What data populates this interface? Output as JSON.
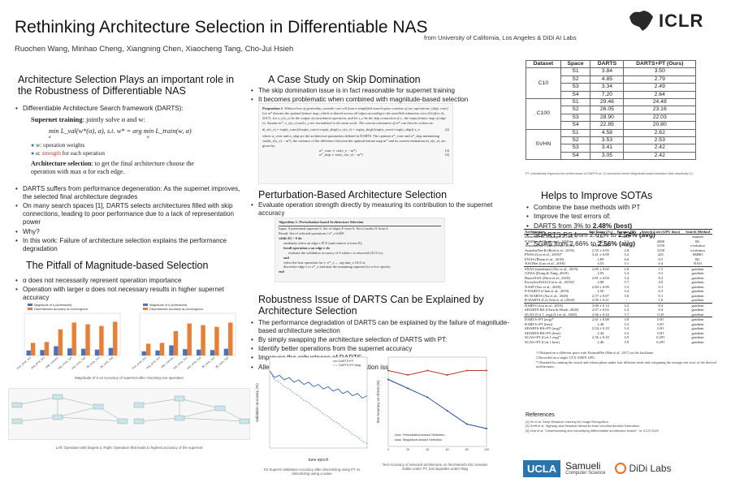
{
  "header": {
    "title": "Rethinking Architecture Selection in Differentiable NAS",
    "authors": "Ruochen Wang, Minhao Cheng, Xiangning Chen, Xiaocheng Tang, Cho-Jui Hsieh",
    "affiliation": "from University of California, Los Angeles & DiDi AI Labs",
    "logo_text": "ICLR"
  },
  "sec1": {
    "title": "Architecture Selection Plays an important role in the Robustness of Differentiable NAS",
    "b1": "Differentiable Architecture Search framework (DARTS):",
    "supernet_label": "Supernet training",
    "supernet_text": ": jointly solve α and w:",
    "eq": "min L_val(w*(α), α),   s.t.   w* = arg min L_train(w, α)",
    "eq_sub1": "α",
    "eq_sub2": "w",
    "w_label": "w: operation weights",
    "a_label": "α: ",
    "a_strength": "strength",
    "a_rest": " for each operation",
    "arch_label": "Architecture selection",
    "arch_text": ": to get the final architecture choose the operation with max α for each edge.",
    "b2": "DARTS suffers from performance degeneration: As the supernet improves, the selected final architecture degrades",
    "b3": "On many search spaces [1], DARTS selects architectures filled with skip connections, leading to poor performance due to a lack of representation power",
    "b4": "Why?",
    "b5": "In this work: Failure of architecture selection explains the performance degradation"
  },
  "sec2": {
    "title": "The Pitfall of Magnitude-based Selection",
    "b1": "α does not necessarily represent operation importance",
    "b2": "Operation with larger α does not necessary results in higher supernet accuracy",
    "chart_caption": "Magnitude of α vs Accuracy of supernet after choosing one operation",
    "legend1": "Magnitude of α (softmaxed)",
    "legend2": "Discretization accuracy at convergence",
    "bottom_caption": "Left: Operation with largest α, Right: Operation that leads to highest accuracy of the supernet"
  },
  "chart_data": [
    {
      "type": "bar",
      "title": "",
      "categories": [
        "max_pool_3x3",
        "avg_pool_3x3",
        "skip_connect",
        "sep_conv_3x3",
        "sep_conv_5x5",
        "dil_conv_3x3",
        "dil_conv_5x5"
      ],
      "series": [
        {
          "name": "Magnitude of α (softmaxed)",
          "values": [
            0.12,
            0.13,
            0.22,
            0.17,
            0.16,
            0.14,
            0.18
          ]
        },
        {
          "name": "Discretization accuracy at convergence",
          "values": [
            0.3,
            0.32,
            0.62,
            0.78,
            0.74,
            0.7,
            0.8
          ]
        }
      ],
      "ylim": [
        0,
        1
      ]
    },
    {
      "type": "bar",
      "title": "",
      "categories": [
        "max_pool_3x3",
        "avg_pool_3x3",
        "skip_connect",
        "sep_conv_3x3",
        "sep_conv_5x5",
        "dil_conv_3x3",
        "dil_conv_5x5"
      ],
      "series": [
        {
          "name": "Magnitude of α (softmaxed)",
          "values": [
            0.1,
            0.12,
            0.24,
            0.15,
            0.14,
            0.13,
            0.16
          ]
        },
        {
          "name": "Discretization accuracy at convergence",
          "values": [
            0.28,
            0.3,
            0.58,
            0.76,
            0.72,
            0.68,
            0.78
          ]
        }
      ],
      "ylim": [
        0,
        1
      ]
    },
    {
      "type": "line",
      "title": "",
      "xlabel": "tune epoch",
      "ylabel": "validation accuracy (%)",
      "x": [
        0,
        1,
        2,
        3,
        4,
        5,
        6,
        7,
        8,
        9,
        10,
        11,
        12,
        13,
        14,
        15,
        16,
        17,
        18,
        19,
        20
      ],
      "series": [
        {
          "name": "DARTS+PT",
          "values": [
            84,
            81,
            82,
            80,
            81,
            79,
            80,
            78,
            79,
            77,
            78,
            76,
            77,
            75,
            76,
            74,
            75,
            73,
            74,
            72,
            73
          ]
        },
        {
          "name": "DARTS+PT-Mag",
          "values": [
            84,
            80,
            79,
            77,
            76,
            74,
            73,
            71,
            70,
            68,
            67,
            65,
            64,
            62,
            61,
            59,
            58,
            56,
            55,
            53,
            52
          ]
        }
      ],
      "ylim": [
        50,
        90
      ]
    },
    {
      "type": "line",
      "title": "",
      "xlabel": "",
      "ylabel": "Test Accuracy on cifar10 (%)",
      "x": [
        0,
        20,
        40,
        60,
        80,
        100
      ],
      "series": [
        {
          "name": "Perturbation-based Selection",
          "values": [
            97.2,
            97.1,
            97.2,
            97.1,
            97.2,
            97.2
          ]
        },
        {
          "name": "Magnitude-based Selection",
          "values": [
            97.0,
            96.8,
            96.6,
            96.3,
            96.0,
            95.9
          ]
        }
      ],
      "ylim": [
        95.5,
        97.5
      ]
    }
  ],
  "sec3": {
    "title": "A Case Study on Skip Domination",
    "b1": "The skip domination issue is in fact reasonable for supernet training",
    "b2": "It becomes problematic when combined with magnitude-based selection",
    "prop_title": "Proposition 1.",
    "prop_text": "Without loss of generality, consider one cell from a simplified search space consists of two operations: (skip, conv). Let m* denotes the optimal feature map, which is shared across all edges according to the unrolled estimation view (Greff et al., 2017). Let o_e(x_e) be the output of convolution operation, and let x_e be the skip connection (i.e., the input feature map of edge e). Assume m*, o_e(x_e) and x_e are normalized to the same scale. The current estimation of m* can then be written as:",
    "prop_eq": "m̄_e(x_e) = exp(α_conv)/(exp(α_conv)+exp(α_skip)) o_e(x_e) + exp(α_skip)/(exp(α_conv)+exp(α_skip)) x_e",
    "prop_eq_no": "(2)",
    "prop_after": "where α_conv and α_skip are the architecture parameters defined in DARTS. The optimal α*_conv and α*_skip minimizing var(m̄_e(x_e) − m*), the variance of the difference between the optimal feature map m* and its current estimation m̄_e(x_e), are given by:",
    "prop_eq3": "α*_conv ∝ var(x_e − m*)",
    "prop_eq3_no": "(3)",
    "prop_eq4": "α*_skip ∝ var(o_e(x_e) − m*)",
    "prop_eq4_no": "(4)"
  },
  "sec4": {
    "title": "Perturbation-Based Architecture Selection",
    "b1": "Evaluate operation strength directly by measuring its contribution to the supernet accuracy",
    "algo_title": "Algorithm 1: Perturbation-based Architecture Selection",
    "algo_lines": [
      "Input: A pretrained supernet S, Set of edges E from S, Set of nodes N from S",
      "Result: Set of selected operations {o*_e}e∈E",
      "while |E| > 0 do",
      "randomly select an edge e ∈ E (and remove it from E);",
      "forall operation o on edge e do",
      "evaluate the validation accuracy of S when o is removed (ACC\\o);",
      "end",
      "select the best operation for e: o*_e ← arg min_o ACC\\o;",
      "discretize edge e to o*_e and tune the remaining supernet for a few epochs;",
      "end"
    ]
  },
  "sec5": {
    "title": "Robustness Issue of DARTS Can be Explained by Architecture Selection",
    "b1": "The performance degradation of DARTS can be explained by the failure of magnitude-based architecture selection",
    "b2": "By simply swapping the architecture selection of DARTS with PT:",
    "b3": "Identify better operations from the supernet accuracy",
    "b4": "Improves the robustness of DARTS",
    "b5": "Alleviates the skip connection domination issue of DARTS",
    "cap1": "S2 Supernt Validation Accuracy after discretizing using PT vs discretizing using α value",
    "cap2": "Test Accuracy of selected architecture on NAS-Bench-201 remains stable under PT, but degrades under Mag"
  },
  "table1": {
    "headers": [
      "Dataset",
      "Space",
      "DARTS",
      "DARTS+PT (Ours)"
    ],
    "groups": [
      {
        "dataset": "C10",
        "rows": [
          [
            "S1",
            "3.84",
            "3.50"
          ],
          [
            "S2",
            "4.85",
            "2.79"
          ],
          [
            "S3",
            "3.34",
            "2.49"
          ],
          [
            "S4",
            "7.20",
            "2.64"
          ]
        ]
      },
      {
        "dataset": "C100",
        "rows": [
          [
            "S1",
            "29.46",
            "24.48"
          ],
          [
            "S2",
            "26.05",
            "23.16"
          ],
          [
            "S3",
            "28.90",
            "22.03"
          ],
          [
            "S4",
            "22.85",
            "20.80"
          ]
        ]
      },
      {
        "dataset": "SVHN",
        "rows": [
          [
            "S1",
            "4.58",
            "2.62"
          ],
          [
            "S2",
            "3.53",
            "2.53"
          ],
          [
            "S3",
            "3.41",
            "2.42"
          ],
          [
            "S4",
            "3.05",
            "2.42"
          ]
        ]
      }
    ],
    "caption": "PT consistently improves the performance of DARTS on 12 scenarios where Magnitude-based selection fails drastically [1]"
  },
  "sec6": {
    "title": "Helps to Improve SOTAs",
    "b1": "Combine the base methods with PT",
    "b2": "Improve the test errors of:",
    "b3_a": "DARTS from 3% to ",
    "b3_b": "2.48% (best)",
    "b4_a": "SDARTS-RS from 2.67% to ",
    "b4_b": "2.54% (avg)",
    "b5_a": "SGAS from 2.66% to ",
    "b5_b": "2.56% (avg)"
  },
  "table2": {
    "headers": [
      "Architecture",
      "Test Error (%)",
      "Params (M)",
      "Search Cost (GPU days)",
      "Search Method"
    ],
    "rows": [
      [
        "DenseNet-BC (Huang et al., 2017)",
        "3.46",
        "25.6",
        "-",
        "manual"
      ],
      [
        "NASNet-A (Zoph et al., 2018)",
        "2.65",
        "3.3",
        "2000",
        "RL"
      ],
      [
        "AmoebaNet-A (Real et al., 2019)",
        "3.34 ± 0.06",
        "3.2",
        "3150",
        "evolution"
      ],
      [
        "AmoebaNet-B (Real et al., 2019)",
        "2.55 ± 0.05",
        "2.8",
        "3150",
        "evolution"
      ],
      [
        "PNAS (Liu et al., 2018)*",
        "3.41 ± 0.09",
        "3.2",
        "225",
        "SMBO"
      ],
      [
        "ENAS (Pham et al., 2018)",
        "2.89",
        "4.6",
        "0.5",
        "RL"
      ],
      [
        "NAONet (Luo et al., 2018)",
        "3.53",
        "3.1",
        "0.4",
        "NAO"
      ],
      [
        "SNAS (moderate) (Xie et al., 2019)",
        "2.85 ± 0.02",
        "2.8",
        "1.5",
        "gradient"
      ],
      [
        "GDAS (Dong & Yang, 2019)",
        "2.93",
        "3.4",
        "0.3",
        "gradient"
      ],
      [
        "BayesNAS (Zhou et al., 2019)",
        "2.81 ± 0.04",
        "3.4",
        "0.2",
        "gradient"
      ],
      [
        "ProxylessNAS (Cai et al., 2019)†",
        "2.08",
        "5.7",
        "4.0",
        "gradient"
      ],
      [
        "NASP (Yao et al., 2020)",
        "2.83 ± 0.09",
        "3.3",
        "0.1",
        "gradient"
      ],
      [
        "P-DARTS (Chen et al., 2019)",
        "2.50",
        "3.4",
        "0.3",
        "gradient"
      ],
      [
        "PC-DARTS (Xu et al., 2020)",
        "2.57 ± 0.07",
        "3.6",
        "0.1",
        "gradient"
      ],
      [
        "R-DARTS (L2) Zela et al. (2020)",
        "2.95 ± 0.21",
        "-",
        "1.6",
        "gradient"
      ],
      [
        "DARTS (Liu et al., 2019)",
        "3.00 ± 0.14",
        "3.3",
        "0.4",
        "gradient"
      ],
      [
        "SDARTS-RS (Chen & Hsieh, 2020)",
        "2.67 ± 0.03",
        "3.4",
        "0.4",
        "gradient"
      ],
      [
        "SGAS (Cri 1. avg) (Li et al., 2020)",
        "2.66 ± 0.24",
        "3.7",
        "0.25",
        "gradient"
      ],
      [
        "DARTS+PT (avg)*",
        "2.61 ± 0.08",
        "3.0",
        "0.8†",
        "gradient"
      ],
      [
        "DARTS+PT (best)",
        "2.48",
        "3.3",
        "0.8†",
        "gradient"
      ],
      [
        "SDARTS-RS+PT (avg)*",
        "2.54 ± 0.10",
        "3.3",
        "0.8†",
        "gradient"
      ],
      [
        "SDARTS-RS+PT (best)",
        "2.44",
        "3.2",
        "0.8†",
        "gradient"
      ],
      [
        "SGAS+PT (Crit.1 avg)*",
        "2.56 ± 0.10",
        "3.9",
        "0.29†",
        "gradient"
      ],
      [
        "SGAS+PT (Crit.1 best)",
        "2.46",
        "3.9",
        "0.29†",
        "gradient"
      ]
    ],
    "fn1": "† Obtained on a different space with PyramidNet (Han et al., 2017) as the backbone.",
    "fn2": "‡ Recorded on a single GTX 1080Ti GPU.",
    "fn3": "* Obtained by running the search and retrain phase under four different seeds and computing the average test error of the derived architectures."
  },
  "refs": {
    "title": "References",
    "r1": "[1] He et al. Deep Residual Learning for Image Recognition",
    "r2": "[2] Greff et al. Highway and Residual Networks learn Unrolled Iterative Estimation",
    "r3": "[3] Zela et al. \"Understanding and robustifying differentiable architecture search.\" In: ICLR 2020"
  },
  "logos": {
    "ucla": "UCLA",
    "samueli": "Samueli",
    "samueli_sub": "Computer Science",
    "didi": "DiDi Labs"
  },
  "colors": {
    "blue": "#4472c4",
    "orange": "#ed7d31",
    "red": "#c0392b",
    "darkred": "#a03030"
  }
}
